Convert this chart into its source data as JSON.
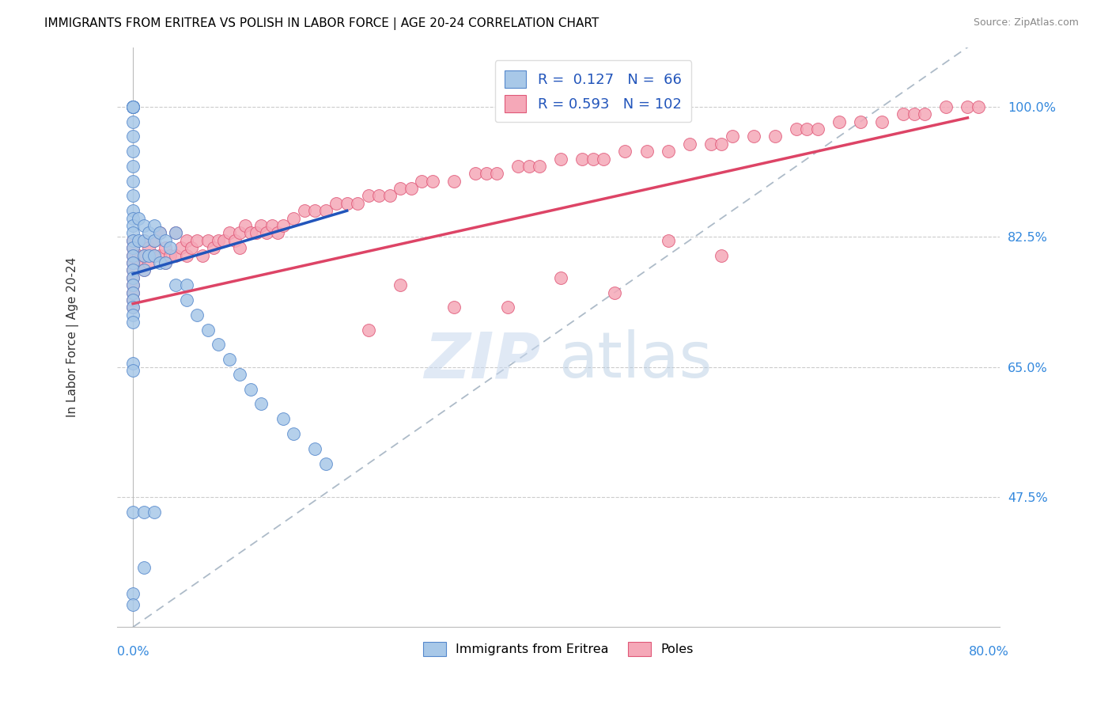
{
  "title": "IMMIGRANTS FROM ERITREA VS POLISH IN LABOR FORCE | AGE 20-24 CORRELATION CHART",
  "source": "Source: ZipAtlas.com",
  "ylabel": "In Labor Force | Age 20-24",
  "ytick_labels": [
    "100.0%",
    "82.5%",
    "65.0%",
    "47.5%"
  ],
  "ytick_values": [
    1.0,
    0.825,
    0.65,
    0.475
  ],
  "xlim": [
    0.0,
    0.8
  ],
  "ylim": [
    0.3,
    1.05
  ],
  "plot_ylim": [
    0.3,
    1.08
  ],
  "legend_r_eritrea": "0.127",
  "legend_n_eritrea": "66",
  "legend_r_polish": "0.593",
  "legend_n_polish": "102",
  "eritrea_color": "#a8c8e8",
  "eritrea_edge": "#5588cc",
  "polish_color": "#f5a8b8",
  "polish_edge": "#e05878",
  "trendline_eritrea_color": "#2255bb",
  "trendline_polish_color": "#dd4466",
  "trendline_identity_color": "#99aabb",
  "er_x": [
    0.0,
    0.0,
    0.0,
    0.0,
    0.0,
    0.0,
    0.0,
    0.0,
    0.0,
    0.0,
    0.0,
    0.0,
    0.0,
    0.0,
    0.0,
    0.0,
    0.0,
    0.0,
    0.0,
    0.0,
    0.0,
    0.0,
    0.0,
    0.0,
    0.0,
    0.0,
    0.0,
    0.005,
    0.005,
    0.01,
    0.01,
    0.01,
    0.01,
    0.015,
    0.015,
    0.02,
    0.02,
    0.02,
    0.025,
    0.025,
    0.03,
    0.03,
    0.035,
    0.04,
    0.04,
    0.05,
    0.05,
    0.06,
    0.07,
    0.08,
    0.09,
    0.1,
    0.11,
    0.12,
    0.14,
    0.15,
    0.17,
    0.18,
    0.0,
    0.01,
    0.02,
    0.01,
    0.0,
    0.0,
    0.0,
    0.0
  ],
  "er_y": [
    1.0,
    1.0,
    1.0,
    1.0,
    1.0,
    0.98,
    0.96,
    0.94,
    0.92,
    0.9,
    0.88,
    0.86,
    0.85,
    0.84,
    0.83,
    0.82,
    0.81,
    0.8,
    0.79,
    0.78,
    0.77,
    0.76,
    0.75,
    0.74,
    0.73,
    0.72,
    0.71,
    0.85,
    0.82,
    0.84,
    0.82,
    0.8,
    0.78,
    0.83,
    0.8,
    0.84,
    0.82,
    0.8,
    0.83,
    0.79,
    0.82,
    0.79,
    0.81,
    0.83,
    0.76,
    0.76,
    0.74,
    0.72,
    0.7,
    0.68,
    0.66,
    0.64,
    0.62,
    0.6,
    0.58,
    0.56,
    0.54,
    0.52,
    0.455,
    0.455,
    0.455,
    0.38,
    0.655,
    0.645,
    0.345,
    0.33
  ],
  "po_x": [
    0.0,
    0.0,
    0.0,
    0.0,
    0.0,
    0.0,
    0.0,
    0.0,
    0.0,
    0.0,
    0.005,
    0.005,
    0.01,
    0.01,
    0.01,
    0.015,
    0.015,
    0.02,
    0.02,
    0.025,
    0.025,
    0.03,
    0.03,
    0.035,
    0.04,
    0.04,
    0.045,
    0.05,
    0.05,
    0.055,
    0.06,
    0.065,
    0.07,
    0.075,
    0.08,
    0.085,
    0.09,
    0.095,
    0.1,
    0.1,
    0.105,
    0.11,
    0.115,
    0.12,
    0.125,
    0.13,
    0.135,
    0.14,
    0.15,
    0.16,
    0.17,
    0.18,
    0.19,
    0.2,
    0.21,
    0.22,
    0.23,
    0.24,
    0.25,
    0.26,
    0.27,
    0.28,
    0.3,
    0.32,
    0.33,
    0.34,
    0.36,
    0.37,
    0.38,
    0.4,
    0.42,
    0.43,
    0.44,
    0.46,
    0.48,
    0.5,
    0.52,
    0.54,
    0.55,
    0.56,
    0.58,
    0.6,
    0.62,
    0.63,
    0.64,
    0.66,
    0.68,
    0.7,
    0.72,
    0.73,
    0.74,
    0.76,
    0.78,
    0.79,
    0.3,
    0.4,
    0.5,
    0.22,
    0.35,
    0.25,
    0.45,
    0.55
  ],
  "po_y": [
    0.82,
    0.81,
    0.8,
    0.79,
    0.78,
    0.77,
    0.76,
    0.75,
    0.74,
    0.73,
    0.8,
    0.79,
    0.82,
    0.8,
    0.78,
    0.81,
    0.79,
    0.82,
    0.8,
    0.83,
    0.8,
    0.81,
    0.79,
    0.8,
    0.83,
    0.8,
    0.81,
    0.82,
    0.8,
    0.81,
    0.82,
    0.8,
    0.82,
    0.81,
    0.82,
    0.82,
    0.83,
    0.82,
    0.83,
    0.81,
    0.84,
    0.83,
    0.83,
    0.84,
    0.83,
    0.84,
    0.83,
    0.84,
    0.85,
    0.86,
    0.86,
    0.86,
    0.87,
    0.87,
    0.87,
    0.88,
    0.88,
    0.88,
    0.89,
    0.89,
    0.9,
    0.9,
    0.9,
    0.91,
    0.91,
    0.91,
    0.92,
    0.92,
    0.92,
    0.93,
    0.93,
    0.93,
    0.93,
    0.94,
    0.94,
    0.94,
    0.95,
    0.95,
    0.95,
    0.96,
    0.96,
    0.96,
    0.97,
    0.97,
    0.97,
    0.98,
    0.98,
    0.98,
    0.99,
    0.99,
    0.99,
    1.0,
    1.0,
    1.0,
    0.73,
    0.77,
    0.82,
    0.7,
    0.73,
    0.76,
    0.75,
    0.8
  ],
  "trendline_er": [
    0.0,
    0.2,
    0.775,
    0.86
  ],
  "trendline_po": [
    0.0,
    0.78,
    0.735,
    0.985
  ],
  "identity_line": [
    0.0,
    0.8,
    0.3,
    1.1
  ]
}
